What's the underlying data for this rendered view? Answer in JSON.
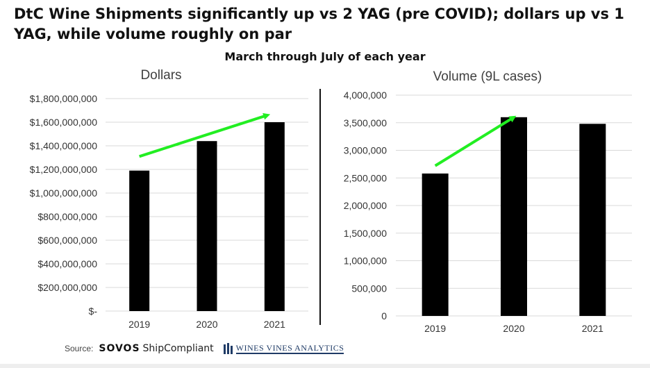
{
  "headline": "DtC Wine Shipments significantly up vs 2 YAG (pre COVID); dollars up vs 1 YAG, while volume roughly on par",
  "subtitle": "March through July of each year",
  "source": {
    "label": "Source:",
    "sovos": "SOVOS",
    "shipcompliant": "ShipCompliant",
    "wva": "WINES VINES ANALYTICS"
  },
  "colors": {
    "bar": "#000000",
    "arrow": "#22ee22",
    "grid": "#d9d9d9",
    "text": "#333333"
  },
  "chart_data": [
    {
      "type": "bar",
      "title": "Dollars",
      "categories": [
        "2019",
        "2020",
        "2021"
      ],
      "values": [
        1190000000,
        1440000000,
        1600000000
      ],
      "ylim": [
        0,
        1800000000
      ],
      "yticks": [
        0,
        200000000,
        400000000,
        600000000,
        800000000,
        1000000000,
        1200000000,
        1400000000,
        1600000000,
        1800000000
      ],
      "ytick_labels": [
        "$-",
        "$200,000,000",
        "$400,000,000",
        "$600,000,000",
        "$800,000,000",
        "$1,000,000,000",
        "$1,200,000,000",
        "$1,400,000,000",
        "$1,600,000,000",
        "$1,800,000,000"
      ],
      "grid": true,
      "annotation": {
        "type": "arrow",
        "from": [
          "2019",
          1310000000
        ],
        "to": [
          "2021",
          1660000000
        ],
        "color": "#22ee22"
      }
    },
    {
      "type": "bar",
      "title": "Volume (9L cases)",
      "categories": [
        "2019",
        "2020",
        "2021"
      ],
      "values": [
        2580000,
        3600000,
        3480000
      ],
      "ylim": [
        0,
        4000000
      ],
      "yticks": [
        0,
        500000,
        1000000,
        1500000,
        2000000,
        2500000,
        3000000,
        3500000,
        4000000
      ],
      "ytick_labels": [
        "0",
        "500,000",
        "1,000,000",
        "1,500,000",
        "2,000,000",
        "2,500,000",
        "3,000,000",
        "3,500,000",
        "4,000,000"
      ],
      "grid": true,
      "annotation": {
        "type": "arrow",
        "from": [
          "2019",
          2720000
        ],
        "to": [
          "2020",
          3600000
        ],
        "color": "#22ee22"
      }
    }
  ]
}
